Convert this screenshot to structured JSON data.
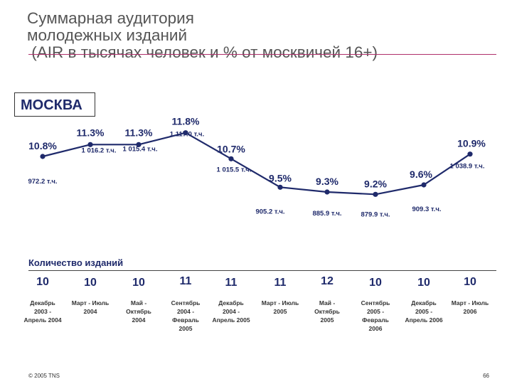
{
  "title": {
    "line1": "Суммарная аудитория",
    "line2": "молодежных изданий",
    "line3": " (AIR в тысячах человек и % от москвичей 16+)"
  },
  "region_label": "МОСКВА",
  "count_section_title": "Количество изданий",
  "footer": {
    "copyright": "© 2005 TNS",
    "page_number": "66"
  },
  "colors": {
    "accent_rule": "#b0306a",
    "series": "#1f2a6b",
    "title_text": "#555555"
  },
  "chart_data": {
    "type": "line",
    "categories": [
      [
        "Декабрь",
        "2003 -",
        "Апрель 2004"
      ],
      [
        "Март - Июль",
        "2004"
      ],
      [
        "Май -",
        "Октябрь",
        "2004"
      ],
      [
        "Сентябрь",
        "2004 -",
        "Февраль",
        "2005"
      ],
      [
        "Декабрь",
        "2004 -",
        "Апрель 2005"
      ],
      [
        "Март - Июль",
        "2005"
      ],
      [
        "Май -",
        "Октябрь",
        "2005"
      ],
      [
        "Сентябрь",
        "2005 -",
        "Февраль",
        "2006"
      ],
      [
        "Декабрь",
        "2005 -",
        "Апрель 2006"
      ],
      [
        "Март - Июль",
        "2006"
      ]
    ],
    "series": [
      {
        "values": [
          10.8,
          11.3,
          11.3,
          11.8,
          10.7,
          9.5,
          9.3,
          9.2,
          9.6,
          10.9
        ],
        "pct_labels": [
          "10.8%",
          "11.3%",
          "11.3%",
          "11.8%",
          "10.7%",
          "9.5%",
          "9.3%",
          "9.2%",
          "9.6%",
          "10.9%"
        ],
        "abs_labels": [
          "972.2 т.ч.",
          "1 016.2 т.ч.",
          "1 015.4 т.ч.",
          "1 117.0 т.ч.",
          "1 015.5 т.ч.",
          "905.2 т.ч.",
          "885.9 т.ч.",
          "879.9 т.ч.",
          "909.3 т.ч.",
          "1 038.9 т.ч."
        ]
      }
    ],
    "publication_counts": [
      "10",
      "10",
      "10",
      "11",
      "11",
      "11",
      "12",
      "10",
      "10",
      "10"
    ],
    "ylim": [
      9.0,
      12.0
    ],
    "grid": false
  }
}
